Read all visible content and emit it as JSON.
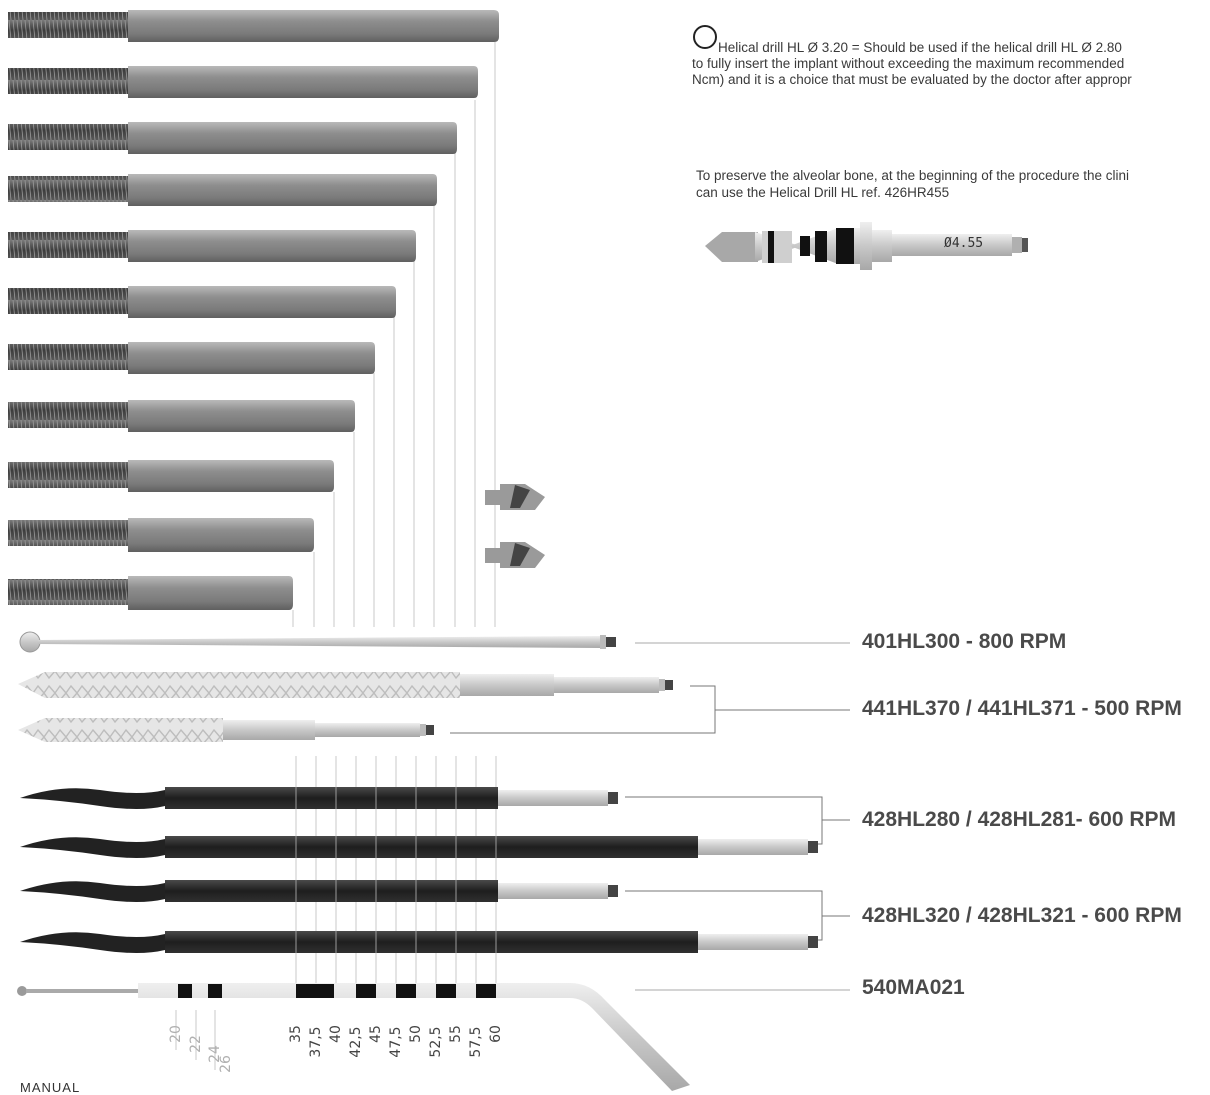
{
  "notes": {
    "circle_note_line1": "Helical drill HL Ø 3.20 = Should be used if the helical drill HL Ø 2.80",
    "circle_note_line2": "to fully insert the implant without exceeding the maximum recommended",
    "circle_note_line3": "Ncm) and it is a choice that must be evaluated by the doctor after appropr",
    "preserve_line1": "To preserve the alveolar bone, at the beginning of the procedure the clini",
    "preserve_line2": "can use the Helical  Drill HL ref. 426HR455",
    "drill_diameter": "Ø4.55"
  },
  "instruments": {
    "lance_drill": "401HL300 - 800 RPM",
    "osteotomes": "441HL370 / 441HL371 - 500 RPM",
    "drills_280": "428HL280 / 428HL281- 600 RPM",
    "drills_320": "428HL320 / 428HL321 - 600 RPM",
    "depth_gauge": "540MA021"
  },
  "scale": {
    "light": [
      "20",
      "22",
      "24",
      "26"
    ],
    "dark": [
      "35",
      "37,5",
      "40",
      "42,5",
      "45",
      "47,5",
      "50",
      "52,5",
      "55",
      "57,5",
      "60"
    ]
  },
  "footer": {
    "cut_text": "MANUAL"
  },
  "colors": {
    "steel": "#8a8a8a",
    "black_drill": "#1f1f1f",
    "label": "#4a4a4a"
  }
}
